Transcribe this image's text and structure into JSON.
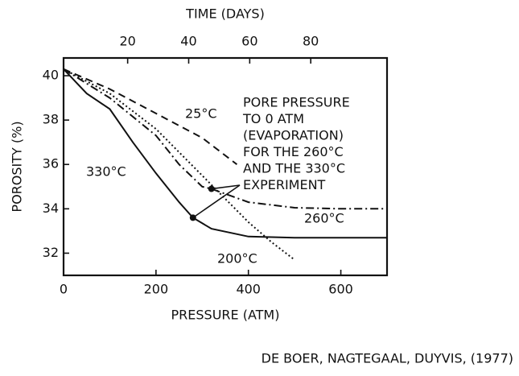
{
  "chart_data": {
    "type": "line",
    "x_label": "PRESSURE (ATM)",
    "y_label": "POROSITY (%)",
    "x2_label": "TIME (DAYS)",
    "xlim": [
      0,
      700
    ],
    "xticks": [
      0,
      200,
      400,
      600
    ],
    "x2lim": [
      -1,
      105
    ],
    "x2ticks": [
      20,
      40,
      60,
      80
    ],
    "ylim": [
      31,
      40.8
    ],
    "yticks": [
      32,
      34,
      36,
      38,
      40
    ],
    "grid": false,
    "series": [
      {
        "name": "25°C",
        "color": "#111111",
        "style": "dashed",
        "x": [
          0,
          100,
          200,
          300,
          375
        ],
        "values": [
          40.3,
          39.4,
          38.3,
          37.2,
          36.0
        ]
      },
      {
        "name": "330°C",
        "color": "#111111",
        "style": "solid",
        "x": [
          0,
          50,
          100,
          150,
          200,
          250,
          280,
          320,
          400,
          500,
          700
        ],
        "values": [
          40.3,
          39.2,
          38.5,
          37.0,
          35.6,
          34.3,
          33.6,
          33.1,
          32.75,
          32.7,
          32.7
        ]
      },
      {
        "name": "260°C",
        "color": "#111111",
        "style": "dash-dot",
        "x": [
          0,
          100,
          200,
          250,
          300,
          320,
          400,
          500,
          600,
          700
        ],
        "values": [
          40.3,
          39.0,
          37.3,
          36.0,
          35.0,
          34.9,
          34.3,
          34.05,
          34.0,
          34.0
        ]
      },
      {
        "name": "200°C",
        "color": "#111111",
        "style": "dotted",
        "x": [
          0,
          100,
          200,
          300,
          400,
          450,
          500
        ],
        "values": [
          40.3,
          39.2,
          37.6,
          35.5,
          33.4,
          32.5,
          31.7
        ]
      }
    ],
    "highlight_points": {
      "x": [
        280,
        320
      ],
      "values": [
        33.6,
        34.9
      ]
    },
    "annotation": [
      "PORE PRESSURE",
      "TO 0 ATM",
      "(EVAPORATION)",
      "FOR THE 260°C",
      "AND THE 330°C",
      "EXPERIMENT"
    ],
    "source": "DE BOER, NAGTEGAAL, DUYVIS, (1977)"
  }
}
